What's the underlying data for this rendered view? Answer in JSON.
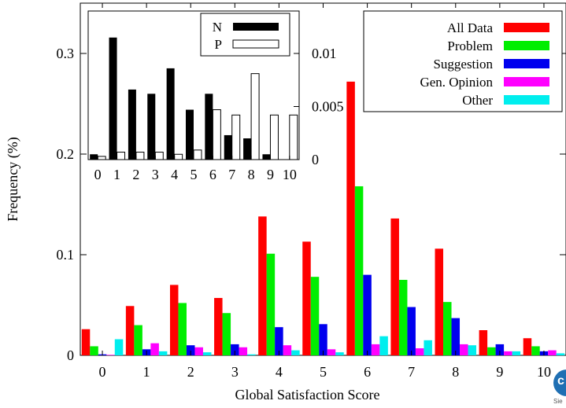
{
  "chart_data": [
    {
      "type": "bar",
      "xlabel": "Global Satisfaction Score",
      "ylabel": "Frequency (%)",
      "ylim": [
        0,
        0.35
      ],
      "yticks": [
        "0",
        "0.1",
        "0.2",
        "0.3"
      ],
      "ytick_values": [
        0,
        0.1,
        0.2,
        0.3
      ],
      "categories": [
        "0",
        "1",
        "2",
        "3",
        "4",
        "5",
        "6",
        "7",
        "8",
        "9",
        "10"
      ],
      "legend_position": "top-right",
      "series": [
        {
          "name": "All Data",
          "color": "#ff0000",
          "values": [
            0.026,
            0.049,
            0.07,
            0.057,
            0.138,
            0.113,
            0.272,
            0.136,
            0.106,
            0.025,
            0.017
          ]
        },
        {
          "name": "Problem",
          "color": "#00ee00",
          "values": [
            0.009,
            0.03,
            0.052,
            0.042,
            0.101,
            0.078,
            0.168,
            0.075,
            0.053,
            0.008,
            0.009
          ]
        },
        {
          "name": "Suggestion",
          "color": "#0000ee",
          "values": [
            0.001,
            0.006,
            0.01,
            0.011,
            0.028,
            0.031,
            0.08,
            0.048,
            0.037,
            0.011,
            0.004
          ]
        },
        {
          "name": "Gen. Opinion",
          "color": "#ff00ff",
          "values": [
            0.0005,
            0.012,
            0.008,
            0.008,
            0.01,
            0.006,
            0.011,
            0.007,
            0.011,
            0.004,
            0.005
          ]
        },
        {
          "name": "Other",
          "color": "#00eeee",
          "values": [
            0.016,
            0.004,
            0.003,
            0.001,
            0.005,
            0.003,
            0.019,
            0.015,
            0.01,
            0.004,
            0.002
          ]
        }
      ]
    },
    {
      "type": "bar",
      "categories": [
        "0",
        "1",
        "2",
        "3",
        "4",
        "5",
        "6",
        "7",
        "8",
        "9",
        "10"
      ],
      "ylim": [
        0,
        0.014
      ],
      "yticks": [
        "0",
        "0.005",
        "0.01"
      ],
      "ytick_values": [
        0,
        0.005,
        0.01
      ],
      "legend_position": "top-right",
      "series": [
        {
          "name": "N",
          "style": "filled",
          "color": "#000000",
          "values": [
            0.0005,
            0.0115,
            0.0066,
            0.0062,
            0.0086,
            0.0047,
            0.0062,
            0.0023,
            0.002,
            0.0005,
            0.0
          ]
        },
        {
          "name": "P",
          "style": "outline",
          "color": "#ffffff",
          "values": [
            0.0003,
            0.0007,
            0.0007,
            0.0007,
            0.0005,
            0.0009,
            0.0047,
            0.0042,
            0.0081,
            0.0042,
            0.0042
          ]
        }
      ]
    }
  ],
  "watermark": {
    "label": "Sie"
  }
}
